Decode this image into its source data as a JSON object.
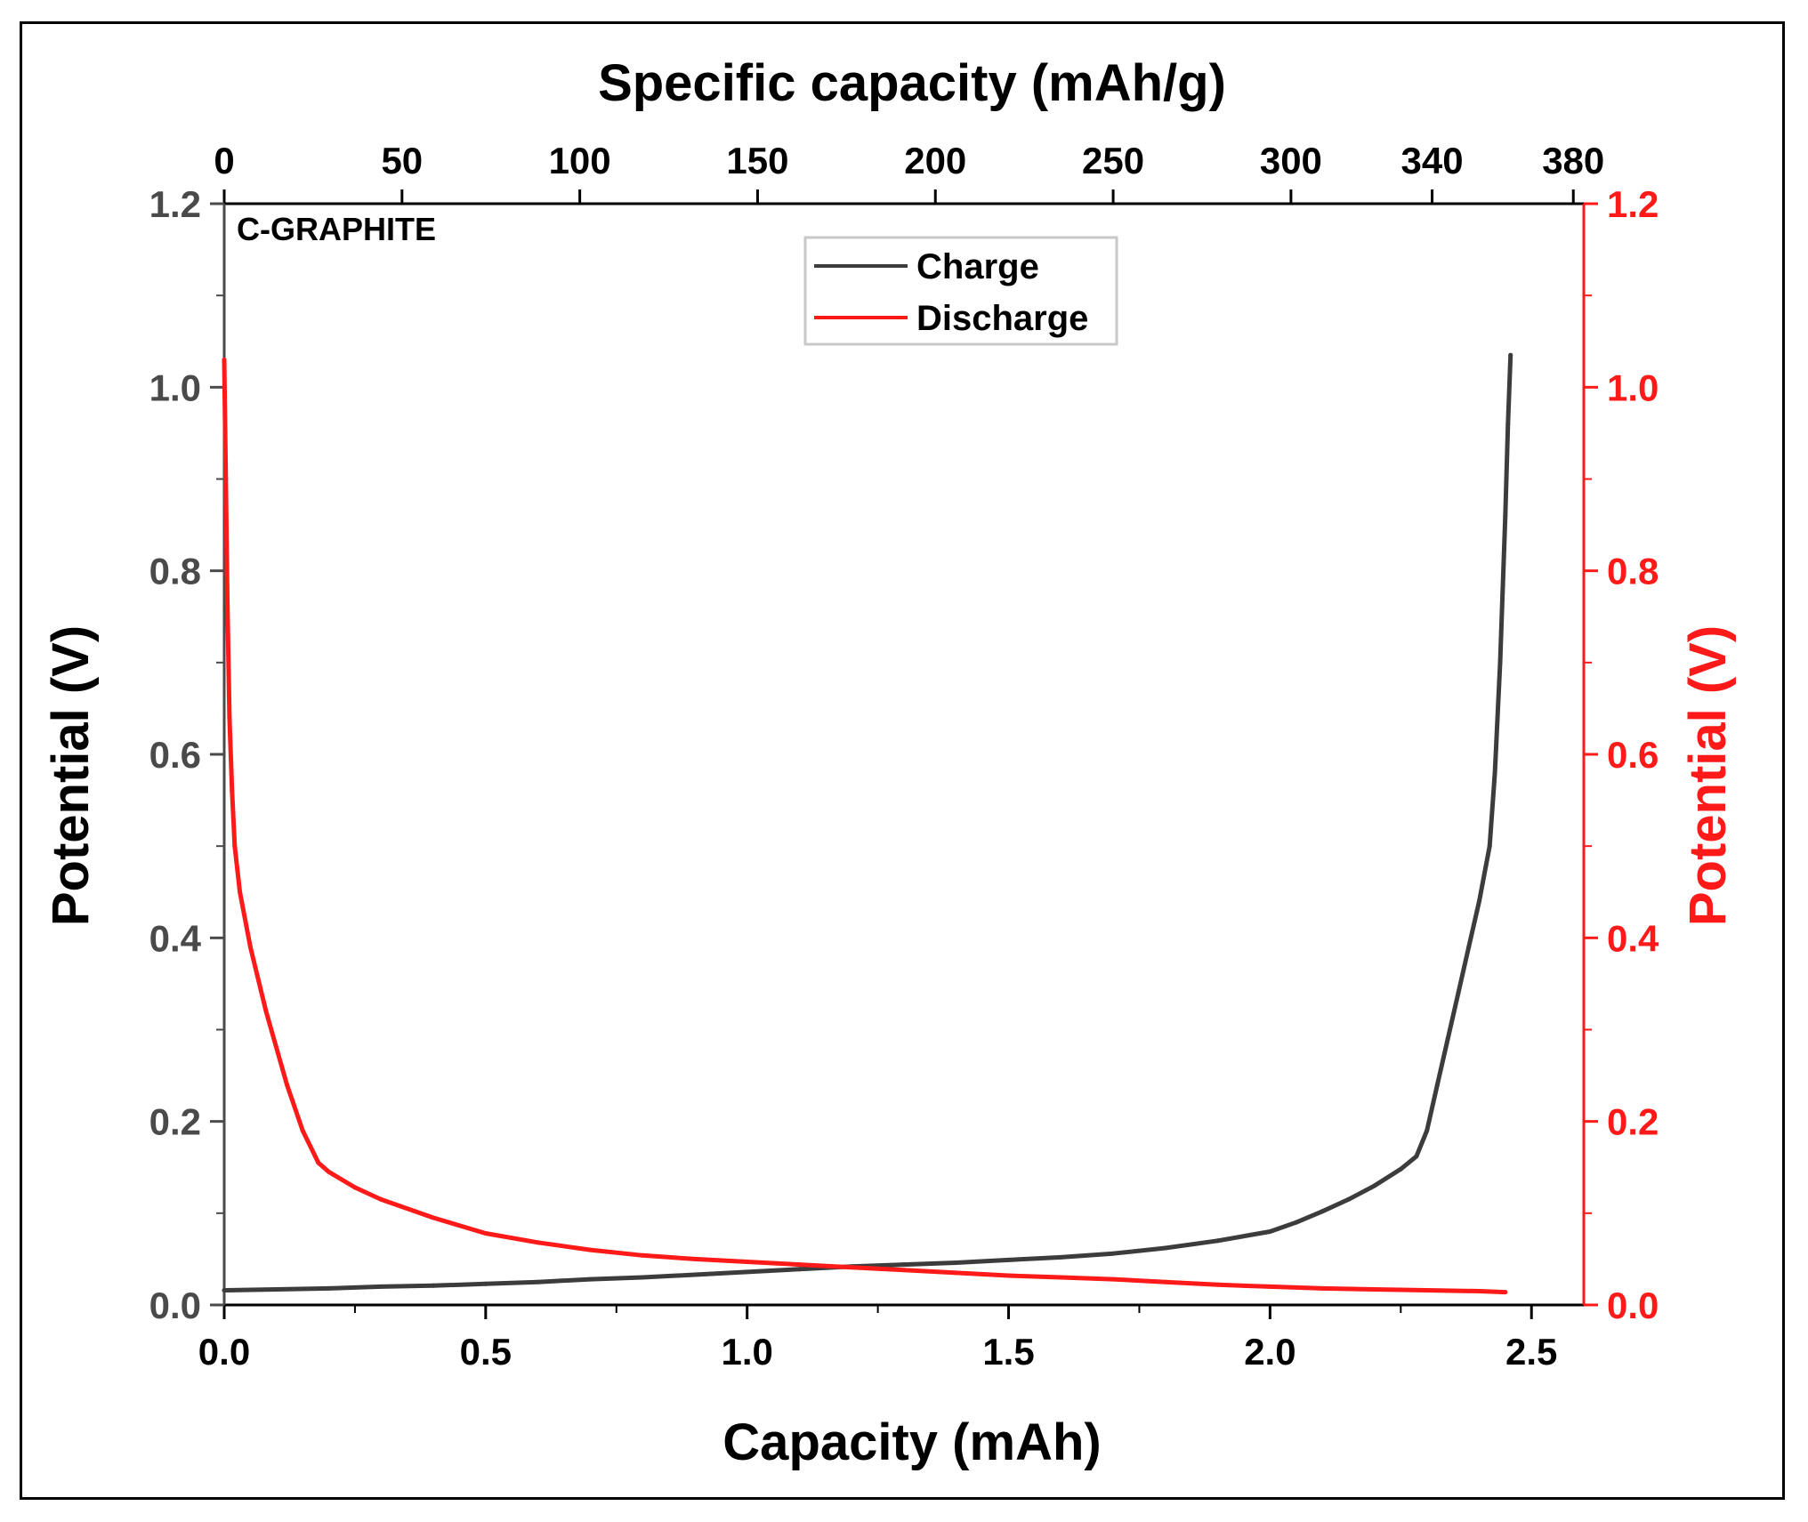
{
  "chart_data": {
    "type": "line",
    "annotation": "C-GRAPHITE",
    "xlabel": "Capacity (mAh)",
    "x2label": "Specific capacity (mAh/g)",
    "ylabel": "Potential (V)",
    "y2label": "Potential (V)",
    "xlim": [
      0,
      2.6
    ],
    "ylim": [
      0,
      1.2
    ],
    "xticks": [
      "0.0",
      "0.5",
      "1.0",
      "1.5",
      "2.0",
      "2.5"
    ],
    "yticks": [
      "0.0",
      "0.2",
      "0.4",
      "0.6",
      "0.8",
      "1.0",
      "1.2"
    ],
    "x2ticks": [
      {
        "label": "0",
        "x": 0.0
      },
      {
        "label": "50",
        "x": 0.34
      },
      {
        "label": "100",
        "x": 0.68
      },
      {
        "label": "150",
        "x": 1.02
      },
      {
        "label": "200",
        "x": 1.36
      },
      {
        "label": "250",
        "x": 1.7
      },
      {
        "label": "300",
        "x": 2.04
      },
      {
        "label": "340",
        "x": 2.31
      },
      {
        "label": "380",
        "x": 2.58
      }
    ],
    "legend_position": "top-center",
    "grid": false,
    "colors": {
      "left_axis": "#4a4a4a",
      "right_axis": "#ff1a1a"
    },
    "series": [
      {
        "name": "Charge",
        "color": "#3c3c3c",
        "x": [
          0.0,
          0.1,
          0.2,
          0.3,
          0.4,
          0.5,
          0.6,
          0.7,
          0.8,
          0.9,
          1.0,
          1.1,
          1.2,
          1.3,
          1.4,
          1.5,
          1.6,
          1.7,
          1.8,
          1.9,
          2.0,
          2.05,
          2.1,
          2.15,
          2.2,
          2.25,
          2.28,
          2.3,
          2.32,
          2.34,
          2.36,
          2.38,
          2.4,
          2.42,
          2.43,
          2.44,
          2.45,
          2.455,
          2.46
        ],
        "y": [
          0.016,
          0.017,
          0.018,
          0.02,
          0.021,
          0.023,
          0.025,
          0.028,
          0.03,
          0.033,
          0.036,
          0.039,
          0.042,
          0.044,
          0.046,
          0.049,
          0.052,
          0.056,
          0.062,
          0.07,
          0.08,
          0.09,
          0.102,
          0.115,
          0.13,
          0.148,
          0.162,
          0.19,
          0.24,
          0.29,
          0.34,
          0.39,
          0.44,
          0.5,
          0.58,
          0.7,
          0.86,
          0.96,
          1.035
        ]
      },
      {
        "name": "Discharge",
        "color": "#ff1a1a",
        "x": [
          0.0,
          0.003,
          0.006,
          0.01,
          0.015,
          0.02,
          0.03,
          0.05,
          0.08,
          0.12,
          0.15,
          0.18,
          0.2,
          0.25,
          0.3,
          0.4,
          0.5,
          0.6,
          0.7,
          0.8,
          0.9,
          1.0,
          1.1,
          1.2,
          1.3,
          1.4,
          1.5,
          1.6,
          1.7,
          1.8,
          1.9,
          2.0,
          2.1,
          2.2,
          2.3,
          2.4,
          2.45
        ],
        "y": [
          1.03,
          0.9,
          0.77,
          0.64,
          0.56,
          0.5,
          0.45,
          0.39,
          0.32,
          0.24,
          0.19,
          0.155,
          0.145,
          0.128,
          0.115,
          0.095,
          0.078,
          0.068,
          0.06,
          0.054,
          0.05,
          0.047,
          0.044,
          0.041,
          0.038,
          0.035,
          0.032,
          0.03,
          0.028,
          0.025,
          0.022,
          0.02,
          0.018,
          0.017,
          0.016,
          0.015,
          0.014
        ]
      }
    ]
  }
}
